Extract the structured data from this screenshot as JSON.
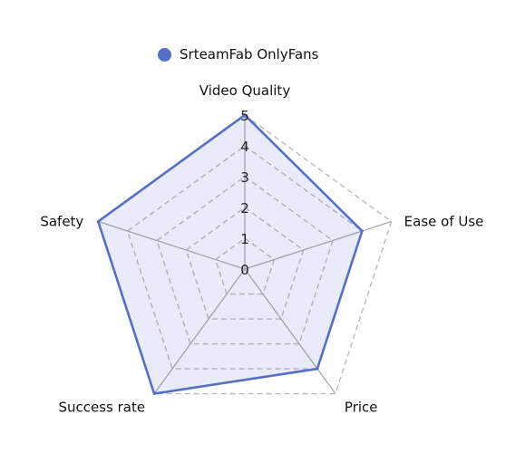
{
  "chart_data": {
    "type": "radar",
    "axes": [
      "Video Quality",
      "Ease of Use",
      "Price",
      "Success rate",
      "Safety"
    ],
    "series": [
      {
        "name": "SrteamFab OnlyFans",
        "values": [
          5,
          4,
          4,
          5,
          5
        ]
      }
    ],
    "max": 5,
    "rings": [
      0,
      1,
      2,
      3,
      4,
      5
    ],
    "legend_position": "top",
    "colors": {
      "series_line": "#5470c6",
      "series_fill": "#5470c6",
      "series_fill_opacity": 0.13,
      "grid": "#bbbbbb",
      "spoke": "#aaaaaa"
    }
  }
}
